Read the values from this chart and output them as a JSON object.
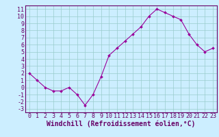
{
  "x": [
    0,
    1,
    2,
    3,
    4,
    5,
    6,
    7,
    8,
    9,
    10,
    11,
    12,
    13,
    14,
    15,
    16,
    17,
    18,
    19,
    20,
    21,
    22,
    23
  ],
  "y": [
    2,
    1,
    0,
    -0.5,
    -0.5,
    0,
    -1,
    -2.5,
    -1,
    1.5,
    4.5,
    5.5,
    6.5,
    7.5,
    8.5,
    10,
    11,
    10.5,
    10,
    9.5,
    7.5,
    6,
    5,
    5.5
  ],
  "line_color": "#990099",
  "marker": "D",
  "marker_size": 2,
  "bg_color": "#cceeff",
  "grid_color": "#99cccc",
  "xlabel": "Windchill (Refroidissement éolien,°C)",
  "xlabel_color": "#660066",
  "xlabel_fontsize": 7,
  "ytick_labels": [
    "11",
    "10",
    "9",
    "8",
    "7",
    "6",
    "5",
    "4",
    "3",
    "2",
    "1",
    "0",
    "-1",
    "-2",
    "-3"
  ],
  "ytick_values": [
    11,
    10,
    9,
    8,
    7,
    6,
    5,
    4,
    3,
    2,
    1,
    0,
    -1,
    -2,
    -3
  ],
  "xtick_labels": [
    "0",
    "1",
    "2",
    "3",
    "4",
    "5",
    "6",
    "7",
    "8",
    "9",
    "10",
    "11",
    "12",
    "13",
    "14",
    "15",
    "16",
    "17",
    "18",
    "19",
    "20",
    "21",
    "22",
    "23"
  ],
  "xlim": [
    -0.5,
    23.5
  ],
  "ylim": [
    -3.5,
    11.5
  ],
  "tick_fontsize": 6,
  "tick_color": "#660066",
  "spine_color": "#660066",
  "title_bg": "#660066"
}
